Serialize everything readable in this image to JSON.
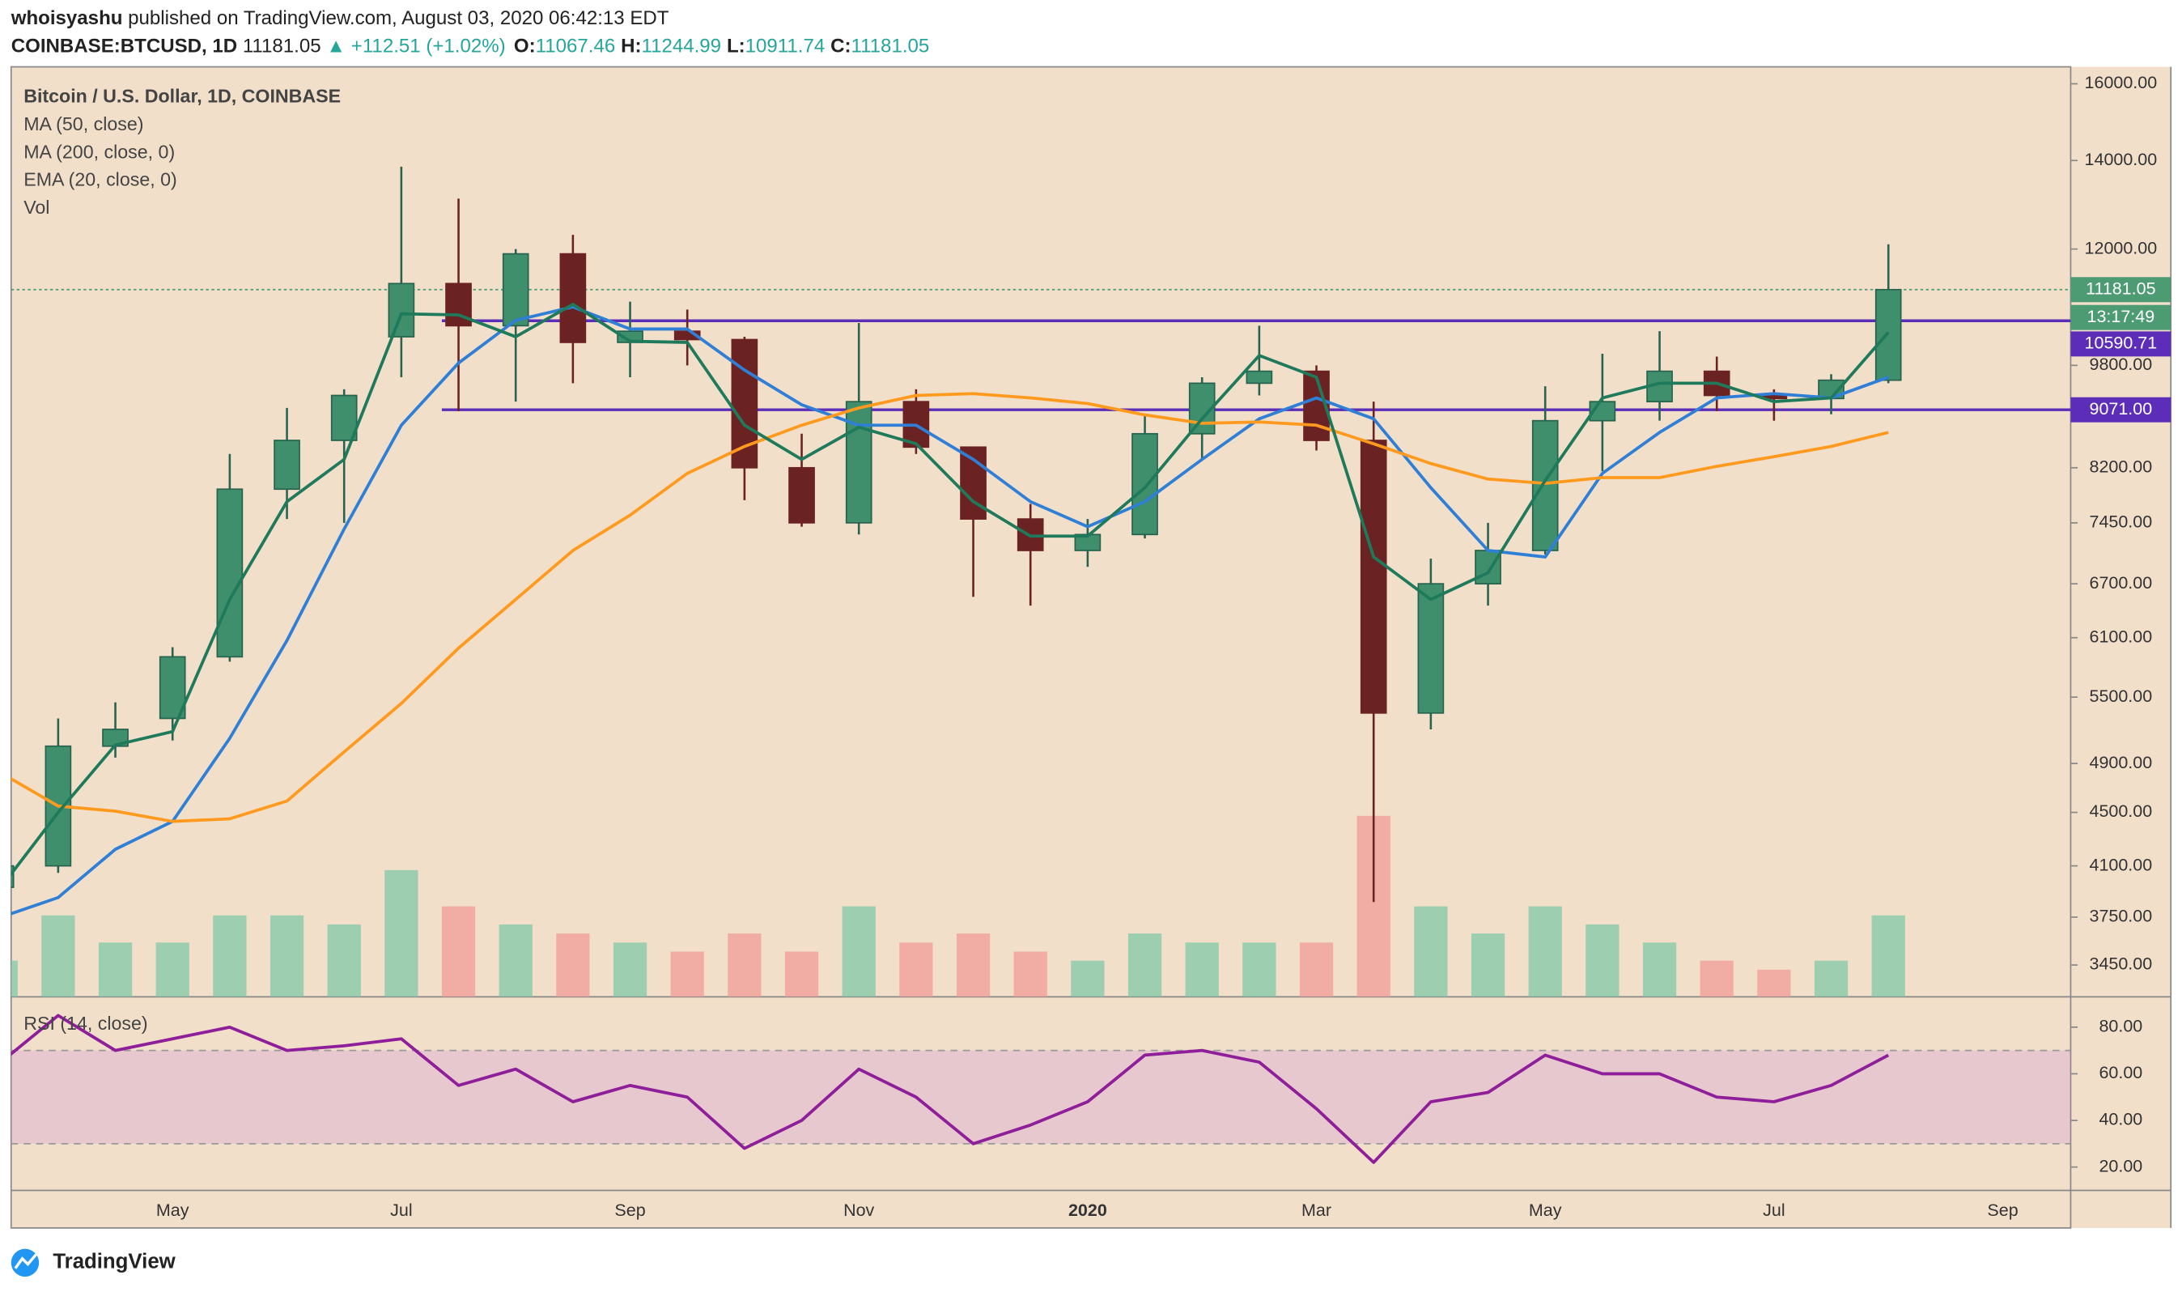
{
  "chart_data": {
    "type": "candlestick",
    "author": "whoisyashu",
    "published": "published on TradingView.com, August 03, 2020 06:42:13 EDT",
    "symbol": "COINBASE:BTCUSD, 1D",
    "last": 11181.05,
    "change": "▲ +112.51 (+1.02%)",
    "quote": [
      {
        "label": "O:",
        "value": 11067.46
      },
      {
        "label": "H:",
        "value": 11244.99
      },
      {
        "label": "L:",
        "value": 10911.74
      },
      {
        "label": "C:",
        "value": 11181.05
      }
    ],
    "title": "Bitcoin / U.S. Dollar, 1D, COINBASE",
    "countdown": "13:17:49",
    "footer": "TradingView",
    "categories": [
      null,
      null,
      null,
      "May",
      null,
      null,
      null,
      "Jul",
      null,
      null,
      null,
      "Sep",
      null,
      null,
      null,
      "Nov",
      null,
      null,
      null,
      "2020",
      null,
      null,
      null,
      "Mar",
      null,
      null,
      null,
      "May",
      null,
      null,
      null,
      "Jul",
      null,
      null,
      null,
      "Sep",
      null
    ],
    "open": [
      3950,
      4100,
      5050,
      5300,
      5900,
      7900,
      8600,
      10300,
      11300,
      10500,
      11900,
      10200,
      10400,
      10250,
      8200,
      7450,
      9200,
      8500,
      7500,
      7100,
      7300,
      8700,
      9500,
      9700,
      8600,
      5350,
      6700,
      7100,
      8900,
      9200,
      9700,
      9300,
      9250,
      9550,
      null,
      null,
      null
    ],
    "high": [
      4100,
      5300,
      5450,
      6000,
      8400,
      9100,
      9400,
      13850,
      13100,
      12000,
      12300,
      10950,
      10800,
      10300,
      8700,
      10550,
      9400,
      8500,
      7700,
      7500,
      9000,
      9600,
      10500,
      9800,
      9200,
      7000,
      7450,
      9450,
      10000,
      10400,
      9950,
      9400,
      9650,
      12100,
      null,
      null,
      null
    ],
    "low": [
      3900,
      4050,
      4950,
      5100,
      5850,
      7500,
      7450,
      9600,
      9050,
      9200,
      9500,
      9600,
      9800,
      7750,
      7400,
      7300,
      8400,
      6550,
      6450,
      6900,
      7250,
      8300,
      9300,
      8450,
      3850,
      5200,
      6450,
      7050,
      8150,
      8900,
      9050,
      8900,
      9000,
      9500,
      null,
      null,
      null
    ],
    "close": [
      4100,
      5050,
      5200,
      5900,
      7900,
      8600,
      9300,
      11300,
      10500,
      11900,
      10200,
      10400,
      10250,
      8200,
      7450,
      9200,
      8500,
      7500,
      7100,
      7300,
      8700,
      9500,
      9700,
      8600,
      5350,
      6700,
      7100,
      8900,
      9200,
      9700,
      9300,
      9250,
      9550,
      11181.05,
      null,
      null,
      null
    ],
    "up_color": "#27634e",
    "down_color": "#6b2222",
    "series": [
      {
        "name": "MA (50, close)",
        "color": "#2f7fd6",
        "values": [
          3750,
          3880,
          4220,
          4430,
          5120,
          6070,
          7370,
          8830,
          9840,
          10600,
          10850,
          10440,
          10440,
          9720,
          9150,
          8830,
          8830,
          8320,
          7730,
          7400,
          7730,
          8320,
          8930,
          9260,
          8930,
          7920,
          7100,
          7020,
          8120,
          8720,
          9260,
          9330,
          9260,
          9600,
          null,
          null,
          null
        ]
      },
      {
        "name": "MA (200, close, 0)",
        "color": "#ff9a1f",
        "values": [
          4820,
          4550,
          4510,
          4430,
          4450,
          4590,
          5000,
          5440,
          5990,
          6520,
          7100,
          7550,
          8120,
          8510,
          8830,
          9100,
          9300,
          9330,
          9260,
          9170,
          8990,
          8860,
          8880,
          8830,
          8550,
          8260,
          8040,
          7980,
          8060,
          8060,
          8220,
          8360,
          8510,
          8720,
          null,
          null,
          null
        ]
      },
      {
        "name": "EMA (20, close, 0)",
        "color": "#1e7a5b",
        "values": [
          3950,
          4500,
          5060,
          5180,
          6520,
          7730,
          8320,
          10720,
          10700,
          10300,
          10900,
          10220,
          10200,
          8830,
          8320,
          8800,
          8550,
          7730,
          7280,
          7280,
          7920,
          8930,
          9970,
          9600,
          7020,
          6520,
          6830,
          8020,
          9260,
          9500,
          9500,
          9200,
          9260,
          10380,
          null,
          null,
          null
        ]
      }
    ],
    "volume": {
      "name": "Vol",
      "up_color": "#86c9a8",
      "down_color": "#f0a09a",
      "ylim": [
        0,
        100
      ],
      "values": [
        20,
        45,
        30,
        30,
        45,
        45,
        40,
        70,
        50,
        40,
        35,
        30,
        25,
        35,
        25,
        50,
        30,
        35,
        25,
        20,
        35,
        30,
        30,
        30,
        100,
        50,
        35,
        50,
        40,
        30,
        20,
        15,
        20,
        45,
        null,
        null,
        null
      ]
    },
    "levels": [
      {
        "value": 10590.71,
        "label": "10590.71"
      },
      {
        "value": 9071,
        "label": "9071.00"
      }
    ],
    "level_color": "#5b2db8",
    "last_color": "#4c9b73",
    "log_scale": true,
    "grid": false,
    "ylim": [
      3264,
      16480
    ],
    "yticks": [
      {
        "value": 16000,
        "label": "16000.00"
      },
      {
        "value": 14000,
        "label": "14000.00"
      },
      {
        "value": 12000,
        "label": "12000.00"
      },
      {
        "value": 9800,
        "label": "9800.00"
      },
      {
        "value": 8200,
        "label": "8200.00"
      },
      {
        "value": 7450,
        "label": "7450.00"
      },
      {
        "value": 6700,
        "label": "6700.00"
      },
      {
        "value": 6100,
        "label": "6100.00"
      },
      {
        "value": 5500,
        "label": "5500.00"
      },
      {
        "value": 4900,
        "label": "4900.00"
      },
      {
        "value": 4500,
        "label": "4500.00"
      },
      {
        "value": 4100,
        "label": "4100.00"
      },
      {
        "value": 3750,
        "label": "3750.00"
      },
      {
        "value": 3450,
        "label": "3450.00"
      }
    ],
    "rsi": {
      "name": "RSI (14, close)",
      "color": "#8e1e99",
      "ylim": [
        10,
        93
      ],
      "band": [
        30,
        70
      ],
      "yticks": [
        {
          "value": 80,
          "label": "80.00"
        },
        {
          "value": 60,
          "label": "60.00"
        },
        {
          "value": 40,
          "label": "40.00"
        },
        {
          "value": 20,
          "label": "20.00"
        }
      ],
      "values": [
        65,
        85,
        70,
        75,
        80,
        70,
        72,
        75,
        55,
        62,
        48,
        55,
        50,
        28,
        40,
        62,
        50,
        30,
        38,
        48,
        68,
        70,
        65,
        45,
        22,
        48,
        52,
        68,
        60,
        60,
        50,
        48,
        55,
        68,
        null,
        null,
        null
      ]
    }
  }
}
